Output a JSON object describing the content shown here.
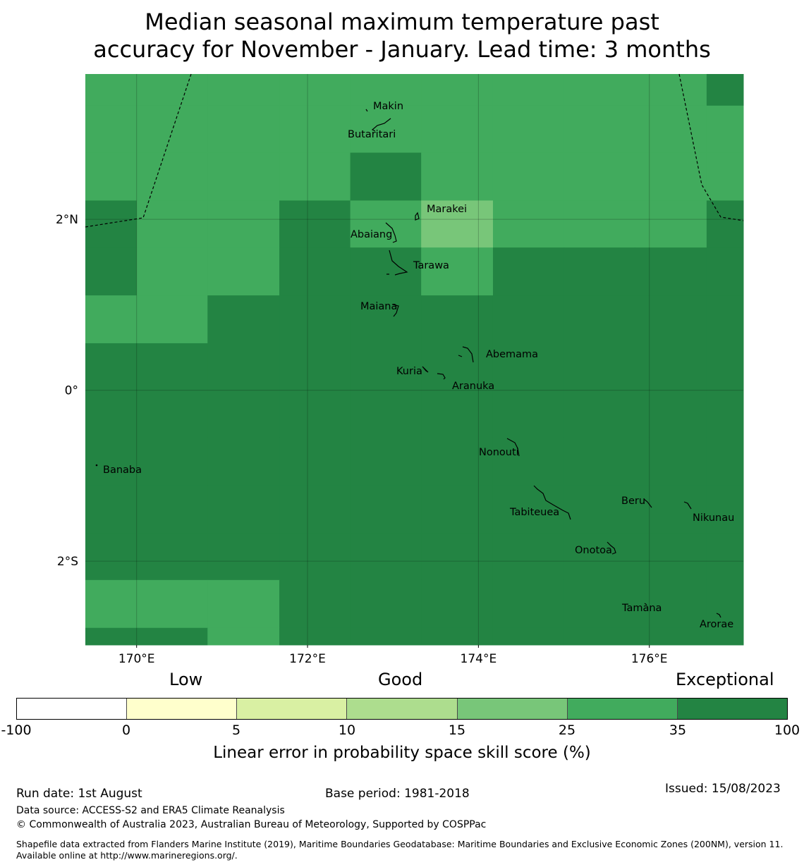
{
  "title": {
    "line1": "Median seasonal maximum temperature past",
    "line2": "accuracy for November - January. Lead time: 3 months"
  },
  "colors": {
    "c25_35": "#41ab5d",
    "c35_100": "#238443",
    "c15_25": "#78c679",
    "c10_15": "#addd8e",
    "c5_10": "#d9f0a3",
    "c0_5": "#ffffcc",
    "cneg": "#ffffff"
  },
  "map": {
    "lon_min": 169.4,
    "lon_max": 177.1,
    "lat_min": -2.98,
    "lat_max": 3.7,
    "x_ticks": [
      {
        "lon": 170,
        "label": "170°E"
      },
      {
        "lon": 172,
        "label": "172°E"
      },
      {
        "lon": 174,
        "label": "174°E"
      },
      {
        "lon": 176,
        "label": "176°E"
      }
    ],
    "y_ticks": [
      {
        "lat": 2,
        "label": "2°N"
      },
      {
        "lat": 0,
        "label": "0°"
      },
      {
        "lat": -2,
        "label": "2°S"
      }
    ],
    "grid": true,
    "lon_edges": [
      169.4,
      170.0,
      170.83,
      171.67,
      172.5,
      173.33,
      174.17,
      175.0,
      175.83,
      176.67,
      177.1
    ],
    "lat_edges": [
      3.7,
      3.33,
      2.78,
      2.22,
      1.67,
      1.11,
      0.55,
      0.0,
      -0.55,
      -1.11,
      -1.67,
      -2.22,
      -2.78,
      -2.98
    ],
    "cells": [
      [
        "g",
        "g",
        "g",
        "g",
        "g",
        "g",
        "g",
        "g",
        "g",
        "d"
      ],
      [
        "g",
        "g",
        "g",
        "g",
        "g",
        "g",
        "g",
        "g",
        "g",
        "g"
      ],
      [
        "g",
        "g",
        "g",
        "g",
        "d",
        "g",
        "g",
        "g",
        "g",
        "g"
      ],
      [
        "d",
        "g",
        "g",
        "d",
        "m",
        "l",
        "g",
        "g",
        "g",
        "d"
      ],
      [
        "d",
        "g",
        "g",
        "d",
        "d",
        "m",
        "d",
        "d",
        "d",
        "d"
      ],
      [
        "g",
        "g",
        "d",
        "d",
        "d",
        "d",
        "d",
        "d",
        "d",
        "d"
      ],
      [
        "d",
        "d",
        "d",
        "d",
        "d",
        "d",
        "d",
        "d",
        "d",
        "d"
      ],
      [
        "d",
        "d",
        "d",
        "d",
        "d",
        "d",
        "d",
        "d",
        "d",
        "d"
      ],
      [
        "d",
        "d",
        "d",
        "d",
        "d",
        "d",
        "d",
        "d",
        "d",
        "d"
      ],
      [
        "d",
        "d",
        "d",
        "d",
        "d",
        "d",
        "d",
        "d",
        "d",
        "d"
      ],
      [
        "d",
        "d",
        "d",
        "d",
        "d",
        "d",
        "d",
        "d",
        "d",
        "d"
      ],
      [
        "g",
        "g",
        "g",
        "d",
        "d",
        "d",
        "d",
        "d",
        "d",
        "d"
      ],
      [
        "d",
        "d",
        "g",
        "d",
        "d",
        "d",
        "d",
        "d",
        "d",
        "d"
      ]
    ],
    "islands": [
      {
        "name": "Makin",
        "lon": 172.99,
        "lat": 3.38
      },
      {
        "name": "Butaritari",
        "lon": 172.79,
        "lat": 3.07
      },
      {
        "name": "Marakei",
        "lon": 173.37,
        "lat": 2.03
      },
      {
        "name": "Abaiang",
        "lon": 172.93,
        "lat": 1.82
      },
      {
        "name": "Tarawa",
        "lon": 173.08,
        "lat": 1.4
      },
      {
        "name": "Maiana",
        "lon": 173.0,
        "lat": 0.94
      },
      {
        "name": "Abemama",
        "lon": 173.86,
        "lat": 0.38
      },
      {
        "name": "Kuria",
        "lon": 173.43,
        "lat": 0.22
      },
      {
        "name": "Aranuka",
        "lon": 173.62,
        "lat": 0.17
      },
      {
        "name": "Nonouti",
        "lon": 174.42,
        "lat": -0.65
      },
      {
        "name": "Banaba",
        "lon": 169.53,
        "lat": -0.87
      },
      {
        "name": "Tabiteuea",
        "lon": 174.83,
        "lat": -1.37
      },
      {
        "name": "Beru",
        "lon": 175.98,
        "lat": -1.33
      },
      {
        "name": "Nikunau",
        "lon": 176.44,
        "lat": -1.37
      },
      {
        "name": "Onotoa",
        "lon": 175.55,
        "lat": -1.85
      },
      {
        "name": "Tamana",
        "lon": 175.98,
        "lat": -2.5
      },
      {
        "name": "Arorae",
        "lon": 176.82,
        "lat": -2.64
      }
    ]
  },
  "legend": {
    "cat_low": "Low",
    "cat_good": "Good",
    "cat_exceptional": "Exceptional",
    "ticks": [
      "-100",
      "0",
      "5",
      "10",
      "15",
      "25",
      "35",
      "100"
    ],
    "label": "Linear error in probability space skill score (%)"
  },
  "footer": {
    "run_date": "Run date: 1st August",
    "base_period": "Base period: 1981-2018",
    "issued": "Issued: 15/08/2023",
    "data_source": "Data source: ACCESS-S2 and ERA5 Climate Reanalysis",
    "copyright": "© Commonwealth of Australia 2023, Australian Bureau of Meteorology, Supported by COSPPac",
    "shapefile": "Shapefile data extracted from Flanders Marine Institute (2019), Maritime Boundaries Geodatabase: Maritime Boundaries and Exclusive Economic Zones (200NM), version 11. Available online at http://www.marineregions.org/."
  }
}
